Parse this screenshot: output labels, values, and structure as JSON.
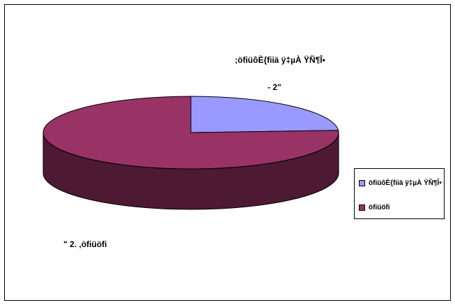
{
  "chart_data": {
    "type": "pie",
    "style": "3d",
    "categories": [
      ";öfiüôÈ{fiiä ÿ‡µÀ ŸÑ¶Î•",
      "öfiüöfi"
    ],
    "values": [
      24,
      76
    ],
    "data_labels": [
      ";öfiüôÈ{fiiä ÿ‡µÀ ŸÑ¶Î•\n- 2\"",
      "\" 2.  ,öfiüöfi"
    ],
    "legend": {
      "position": "right",
      "entries": [
        "öfiüôÈ{fiiä ÿ‡µÀ ŸÑ¶Î•",
        "öfiüöfi"
      ]
    },
    "colors": [
      "#9999ff",
      "#993366"
    ],
    "side_colors": [
      "#4d4d80",
      "#4d1933"
    ]
  }
}
